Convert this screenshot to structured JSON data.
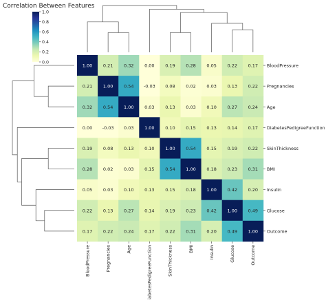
{
  "chart_data": {
    "type": "heatmap",
    "title": "Correlation Between Features",
    "labels": [
      "BloodPressure",
      "Pregnancies",
      "Age",
      "DiabetesPedigreeFunction",
      "SkinThickness",
      "BMI",
      "Insulin",
      "Glucose",
      "Outcome"
    ],
    "matrix": [
      [
        1.0,
        0.21,
        0.32,
        -0.0,
        0.19,
        0.28,
        0.05,
        0.22,
        0.17
      ],
      [
        0.21,
        1.0,
        0.54,
        -0.03,
        0.08,
        0.02,
        0.03,
        0.13,
        0.22
      ],
      [
        0.32,
        0.54,
        1.0,
        0.03,
        0.13,
        0.03,
        0.1,
        0.27,
        0.24
      ],
      [
        -0.0,
        -0.03,
        0.03,
        1.0,
        0.1,
        0.15,
        0.13,
        0.14,
        0.17
      ],
      [
        0.19,
        0.08,
        0.13,
        0.1,
        1.0,
        0.54,
        0.15,
        0.19,
        0.22
      ],
      [
        0.28,
        0.02,
        0.03,
        0.15,
        0.54,
        1.0,
        0.18,
        0.23,
        0.31
      ],
      [
        0.05,
        0.03,
        0.1,
        0.13,
        0.15,
        0.18,
        1.0,
        0.42,
        0.2
      ],
      [
        0.22,
        0.13,
        0.27,
        0.14,
        0.19,
        0.23,
        0.42,
        1.0,
        0.49
      ],
      [
        0.17,
        0.22,
        0.24,
        0.17,
        0.22,
        0.31,
        0.2,
        0.49,
        1.0
      ]
    ],
    "colorbar": {
      "min": 0.0,
      "max": 1.0,
      "ticks": [
        "0.0",
        "0.2",
        "0.4",
        "0.6",
        "0.8",
        "1.0"
      ],
      "colormap": "YlGnBu"
    },
    "colormap_stops": [
      "#ffffd9",
      "#edf8b1",
      "#c7e9b4",
      "#7fcdbb",
      "#41b6c4",
      "#1d91c0",
      "#225ea8",
      "#253494",
      "#081d58"
    ]
  }
}
